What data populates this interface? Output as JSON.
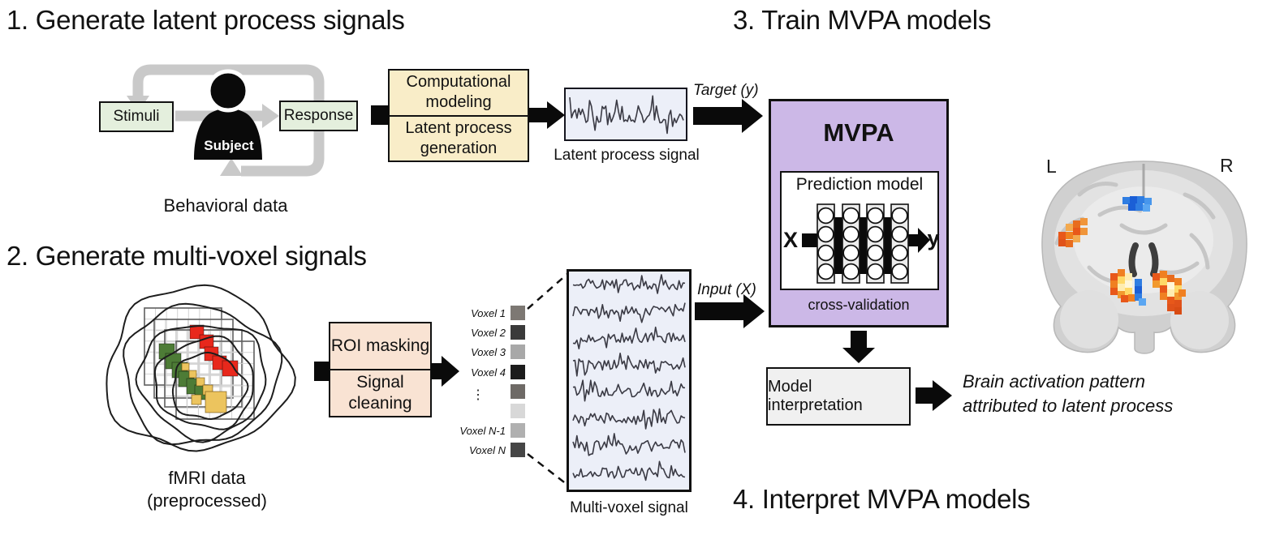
{
  "headings": {
    "step1": "1. Generate latent process signals",
    "step2": "2. Generate multi-voxel signals",
    "step3": "3. Train MVPA models",
    "step4": "4. Interpret MVPA models"
  },
  "behavioral": {
    "stimuli": "Stimuli",
    "subject": "Subject",
    "response": "Response",
    "caption": "Behavioral data"
  },
  "modeling_box": {
    "line1": "Computational modeling",
    "line2": "Latent process generation"
  },
  "latent_signal_caption": "Latent process signal",
  "labels": {
    "target": "Target (y)",
    "input": "Input (X)"
  },
  "mvpa": {
    "title": "MVPA",
    "inner_title": "Prediction model",
    "input": "X",
    "output": "y",
    "footer": "cross-validation"
  },
  "fmri_caption": {
    "line1": "fMRI data",
    "line2": "(preprocessed)"
  },
  "roi_box": {
    "line1": "ROI masking",
    "line2": "Signal cleaning"
  },
  "voxels": {
    "ellipsis": "⋮",
    "rows": [
      {
        "label": "Voxel 1",
        "color": "#7d7873"
      },
      {
        "label": "Voxel 2",
        "color": "#3a3a3a"
      },
      {
        "label": "Voxel 3",
        "color": "#a8a8a8"
      },
      {
        "label": "Voxel 4",
        "color": "#1c1c1c"
      },
      {
        "label": "",
        "color": "#6e6a66"
      },
      {
        "label": "",
        "color": "#d8d8d8"
      },
      {
        "label": "Voxel N-1",
        "color": "#b0b0b0"
      },
      {
        "label": "Voxel N",
        "color": "#464646"
      }
    ]
  },
  "multivoxel_caption": "Multi-voxel signal",
  "interpretation": {
    "box_label": "Model interpretation",
    "result_line1": "Brain activation pattern",
    "result_line2": "attributed to latent process"
  },
  "brain_map": {
    "left_label": "L",
    "right_label": "R"
  },
  "colors": {
    "stimulus_green": "#e4efdd",
    "model_yellow": "#f9edc8",
    "roi_pink": "#f9e3d3",
    "mvpa_purple": "#ccb8e7",
    "signal_blue": "#eceff8",
    "interp_gray": "#f0f0f0",
    "loop_gray": "#c9c9c9",
    "trace_gray": "#3a3a44",
    "voxel_red": "#e8281c",
    "voxel_green": "#4d7c36",
    "voxel_yellow": "#ecc45e"
  }
}
